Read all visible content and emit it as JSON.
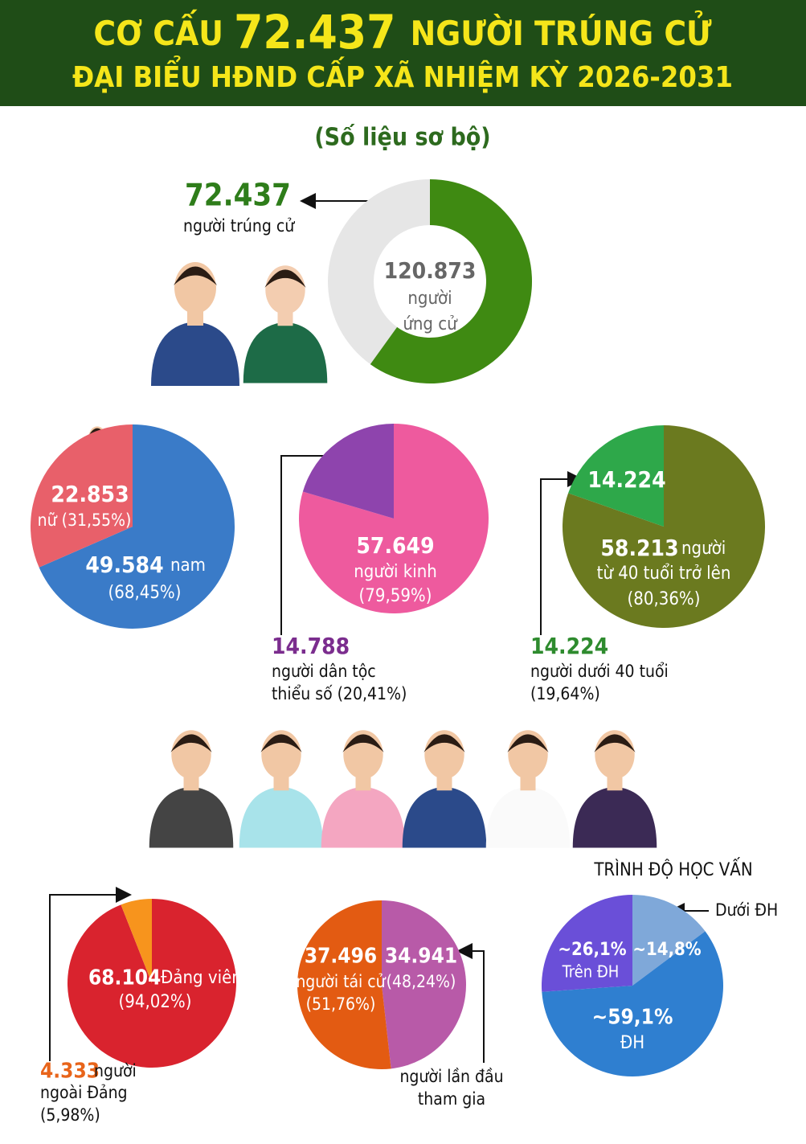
{
  "header": {
    "title_parts": [
      "CƠ CẤU",
      "72.437",
      "NGƯỜI TRÚNG CỬ"
    ],
    "title_line2": "ĐẠI BIỂU HĐND CẤP XÃ NHIỆM KỲ 2026-2031",
    "subtitle": "(Số liệu sơ bộ)"
  },
  "chart_data": [
    {
      "type": "donut",
      "values": [
        72437
      ],
      "value_labels": [
        "72.437"
      ],
      "captions": [
        [
          "người trúng cử"
        ]
      ],
      "colors": [
        "#3f8a12"
      ],
      "total": 120873,
      "total_label": "120.873",
      "total_caption": [
        "người",
        "ứng cử"
      ],
      "rest_color": "#e6e6e6"
    },
    {
      "type": "pie",
      "values": [
        49584,
        22853
      ],
      "value_labels": [
        "49.584",
        "22.853"
      ],
      "captions": [
        [
          "nam",
          "(68,45%)"
        ],
        [
          "nữ (31,55%)"
        ]
      ],
      "colors": [
        "#3a7bc8",
        "#e8606a"
      ]
    },
    {
      "type": "pie",
      "values": [
        57649,
        14788
      ],
      "value_labels": [
        "57.649",
        "14.788"
      ],
      "captions": [
        [
          "người kinh",
          "(79,59%)"
        ],
        [
          "người dân tộc",
          "thiểu số (20,41%)"
        ]
      ],
      "colors": [
        "#ee5a9e",
        "#8e44ad"
      ]
    },
    {
      "type": "pie",
      "values": [
        58213,
        14224
      ],
      "value_labels": [
        "58.213",
        "14.224"
      ],
      "captions": [
        [
          "người",
          "từ 40 tuổi trở lên",
          "(80,36%)"
        ],
        [
          "người dưới 40 tuổi",
          "(19,64%)"
        ]
      ],
      "colors": [
        "#6b7a1f",
        "#2ea84a"
      ]
    },
    {
      "type": "pie",
      "values": [
        68104,
        4333
      ],
      "value_labels": [
        "68.104",
        "4.333"
      ],
      "captions": [
        [
          "Đảng viên",
          "(94,02%)"
        ],
        [
          "người",
          "ngoài Đảng",
          "(5,98%)"
        ]
      ],
      "colors": [
        "#d9232e",
        "#f7941d"
      ]
    },
    {
      "type": "pie",
      "values": [
        34941,
        37496
      ],
      "value_labels": [
        "34.941",
        "37.496"
      ],
      "captions": [
        [
          "(48,24%)",
          "người lần đầu",
          "tham gia"
        ],
        [
          "người tái cử",
          "(51,76%)"
        ]
      ],
      "colors": [
        "#b85aa8",
        "#e35b12"
      ]
    },
    {
      "type": "pie",
      "title": "TRÌNH ĐỘ HỌC VẤN",
      "values": [
        14.8,
        59.1,
        26.1
      ],
      "value_labels": [
        "~14,8%",
        "~59,1%",
        "~26,1%"
      ],
      "captions": [
        [
          "Dưới ĐH"
        ],
        [
          "ĐH"
        ],
        [
          "Trên ĐH"
        ]
      ],
      "colors": [
        "#7fa8d9",
        "#2f7fd0",
        "#6a4fd8"
      ]
    }
  ]
}
